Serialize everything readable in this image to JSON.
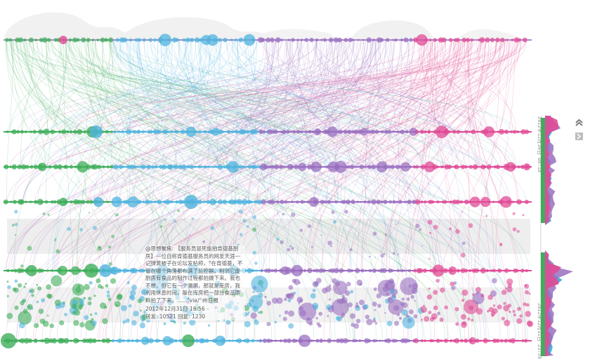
{
  "tooltip": {
    "text": "@思想聚焦: 【服务员冒死偷拍肯德基厨房】一位自称肯德基服务员的网友天涯一记弹簧被子在论坛发帖称，\"在肯德基，不管在哪个角落都布满了监控器。相邻它废厨房有食品的制作过程都拍摄下来。我也不想，但它有一个漏洞，那就是库房，我利用休息时间，躲在库房把一部分食品原料拍了下来。......\"via广州日报",
    "time": "2012年12月31日 16:56",
    "stats": "转发: 10521  回复: 1230"
  },
  "timeline": {
    "start_label": "2012年12月30日 08:18",
    "end_label": "2012年12月31日 23:59"
  },
  "controls": {
    "collapse_icon": "double-chevron-up-icon",
    "expand_icon": "bar-expand-icon"
  },
  "colors": {
    "green": "#3fae5a",
    "blue": "#4fb3dd",
    "purple": "#9a6fc0",
    "pink": "#e04b95"
  }
}
